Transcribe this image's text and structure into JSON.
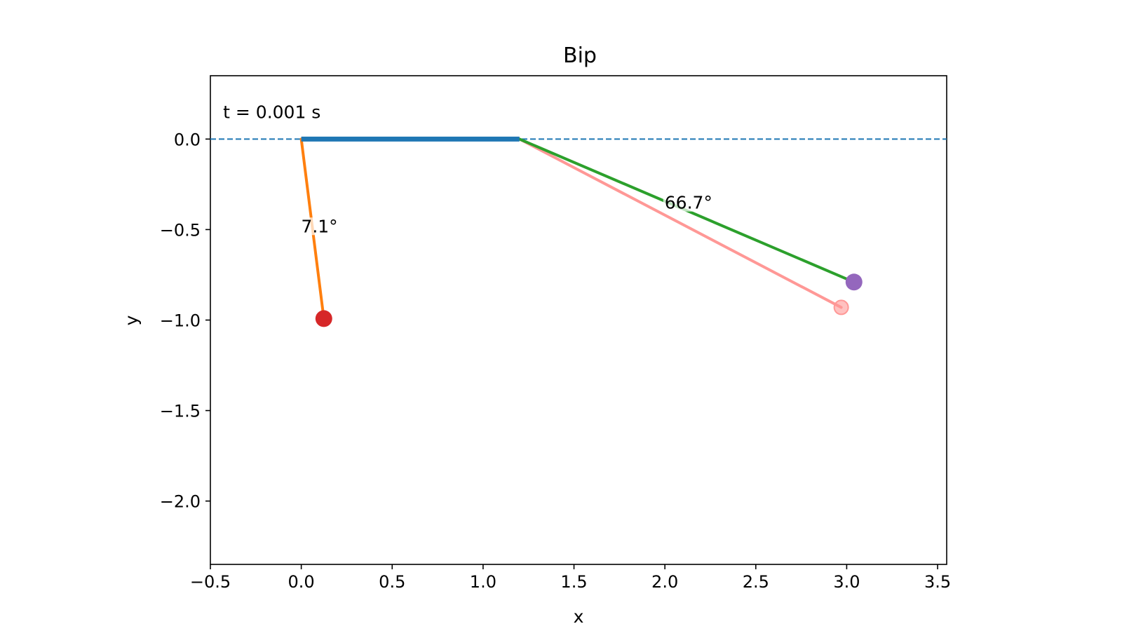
{
  "chart_data": {
    "type": "line",
    "title": "Bip",
    "xlabel": "x",
    "ylabel": "y",
    "xlim": [
      -0.5,
      3.55
    ],
    "ylim": [
      -2.35,
      0.35
    ],
    "xticks": [
      -0.5,
      0.0,
      0.5,
      1.0,
      1.5,
      2.0,
      2.5,
      3.0,
      3.5
    ],
    "xtick_labels": [
      "−0.5",
      "0.0",
      "0.5",
      "1.0",
      "1.5",
      "2.0",
      "2.5",
      "3.0",
      "3.5"
    ],
    "yticks": [
      0.0,
      -0.5,
      -1.0,
      -1.5,
      -2.0
    ],
    "ytick_labels": [
      "0.0",
      "−0.5",
      "−1.0",
      "−1.5",
      "−2.0"
    ],
    "grid": false,
    "colors": {
      "baseline": "#1f77b4",
      "bar": "#1f77b4",
      "left_rod": "#ff7f0e",
      "left_bob": "#d62728",
      "right_rod": "#2ca02c",
      "right_bob": "#9467bd",
      "ghost": "#ff9896"
    },
    "baseline_y": 0.0,
    "series": [
      {
        "x": [
          0.0,
          1.2
        ],
        "y": [
          0.0,
          0.0
        ]
      },
      {
        "x": [
          0.0,
          0.124
        ],
        "y": [
          0.0,
          -0.992
        ]
      },
      {
        "x": [
          1.2,
          3.04
        ],
        "y": [
          0.0,
          -0.79
        ]
      },
      {
        "x": [
          1.2,
          2.97
        ],
        "y": [
          0.0,
          -0.93
        ]
      }
    ],
    "points": [
      {
        "x": 0.124,
        "y": -0.992
      },
      {
        "x": 3.04,
        "y": -0.79
      },
      {
        "x": 2.97,
        "y": -0.93
      }
    ],
    "annotations": [
      {
        "text": "t = 0.001 s",
        "x": -0.43,
        "y": 0.15
      },
      {
        "text": "7.1°",
        "x": 0.1,
        "y": -0.48
      },
      {
        "text": "66.7°",
        "x": 2.13,
        "y": -0.35
      }
    ]
  }
}
